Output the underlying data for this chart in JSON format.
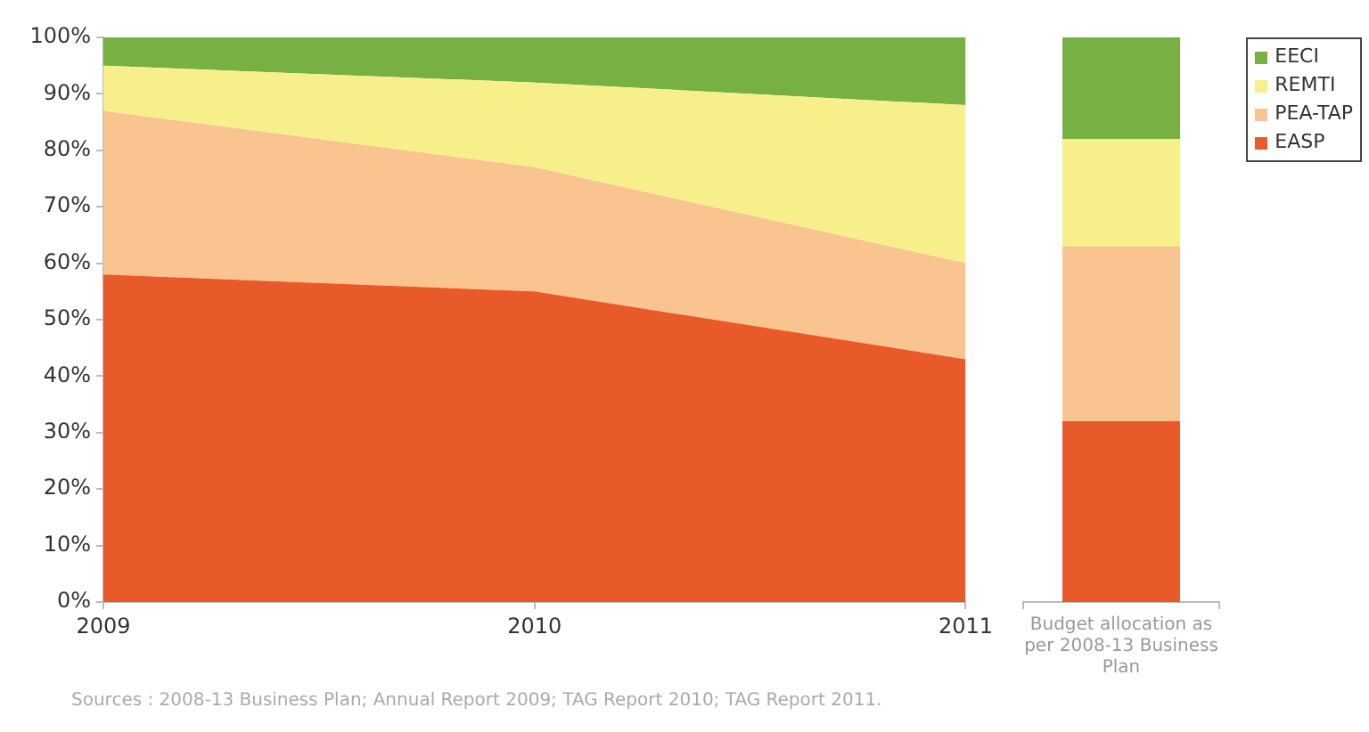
{
  "chart_data": [
    {
      "type": "area",
      "stacked": true,
      "categories": [
        "2009",
        "2010",
        "2011"
      ],
      "ylim": [
        0,
        100
      ],
      "yticks": [
        {
          "value": 0,
          "label": "0%"
        },
        {
          "value": 10,
          "label": "10%"
        },
        {
          "value": 20,
          "label": "20%"
        },
        {
          "value": 30,
          "label": "30%"
        },
        {
          "value": 40,
          "label": "40%"
        },
        {
          "value": 50,
          "label": "50%"
        },
        {
          "value": 60,
          "label": "60%"
        },
        {
          "value": 70,
          "label": "70%"
        },
        {
          "value": 80,
          "label": "80%"
        },
        {
          "value": 90,
          "label": "90%"
        },
        {
          "value": 100,
          "label": "100%"
        }
      ],
      "series": [
        {
          "color": "#e85a2a",
          "values": [
            58,
            55,
            43
          ]
        },
        {
          "color": "#f9c48f",
          "values": [
            29,
            22,
            17
          ]
        },
        {
          "color": "#f7f08a",
          "values": [
            8,
            15,
            28
          ]
        },
        {
          "color": "#77b144",
          "values": [
            5,
            8,
            12
          ]
        }
      ],
      "annotations": [
        "Sources : 2008-13 Business Plan; Annual Report 2009; TAG Report 2010; TAG Report 2011."
      ]
    },
    {
      "type": "bar",
      "stacked": true,
      "categories": [
        "Budget allocation as per 2008-13 Business Plan"
      ],
      "ylim": [
        0,
        100
      ],
      "tick_labels": "x",
      "legend": "right",
      "series": [
        {
          "name": "EASP",
          "color": "#e85a2a",
          "values": [
            32
          ]
        },
        {
          "name": "PEA-TAP",
          "color": "#f9c48f",
          "values": [
            31
          ]
        },
        {
          "name": "REMTI",
          "color": "#f7f08a",
          "values": [
            19
          ]
        },
        {
          "name": "EECI",
          "color": "#77b144",
          "values": [
            18
          ]
        }
      ]
    }
  ]
}
